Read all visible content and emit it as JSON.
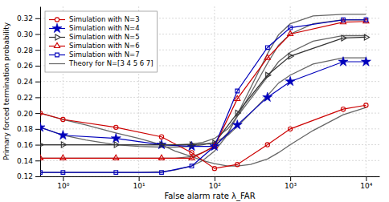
{
  "chart_data": {
    "type": "line",
    "xlabel": "False alarm rate λ_FAR",
    "ylabel": "Primary forced termination probability",
    "log": "x",
    "grid": true,
    "legend": "upper left",
    "xlim": [
      0.5,
      15000
    ],
    "xticks": [
      {
        "value": 1,
        "label": "10⁰"
      },
      {
        "value": 10,
        "label": "10¹"
      },
      {
        "value": 100,
        "label": "10²"
      },
      {
        "value": 1000,
        "label": "10³"
      },
      {
        "value": 10000,
        "label": "10⁴"
      }
    ],
    "ylim": [
      0.12,
      0.335
    ],
    "yticks": [
      0.12,
      0.14,
      0.16,
      0.18,
      {
        "value": 0.2,
        "label": "0.20"
      },
      0.22,
      0.24,
      0.26,
      0.28,
      {
        "value": 0.3,
        "label": "0.30"
      },
      0.32
    ],
    "series": [
      {
        "name": "Simulation with N=3",
        "color": "#cc0000",
        "marker": "circle",
        "x": [
          0.5,
          1,
          5,
          20,
          50,
          100,
          200,
          500,
          1000,
          5000,
          10000
        ],
        "values": [
          0.2,
          0.192,
          0.182,
          0.17,
          0.15,
          0.13,
          0.135,
          0.16,
          0.18,
          0.205,
          0.21
        ]
      },
      {
        "name": "Simulation with N=4",
        "color": "#0000bb",
        "marker": "star",
        "x": [
          0.5,
          1,
          5,
          20,
          50,
          100,
          200,
          500,
          1000,
          5000,
          10000
        ],
        "values": [
          0.182,
          0.172,
          0.168,
          0.16,
          0.158,
          0.158,
          0.185,
          0.22,
          0.24,
          0.265,
          0.265
        ]
      },
      {
        "name": "Simulation with N=5",
        "color": "#333333",
        "marker": "triangle-right",
        "x": [
          0.5,
          1,
          5,
          20,
          50,
          100,
          200,
          500,
          1000,
          5000,
          10000
        ],
        "values": [
          0.16,
          0.16,
          0.16,
          0.16,
          0.16,
          0.162,
          0.2,
          0.248,
          0.272,
          0.295,
          0.296
        ]
      },
      {
        "name": "Simulation with N=6",
        "color": "#cc0000",
        "marker": "triangle-up",
        "x": [
          0.5,
          1,
          5,
          20,
          50,
          100,
          200,
          500,
          1000,
          5000,
          10000
        ],
        "values": [
          0.143,
          0.143,
          0.143,
          0.143,
          0.143,
          0.158,
          0.218,
          0.27,
          0.3,
          0.315,
          0.316
        ]
      },
      {
        "name": "Simulation with N=7",
        "color": "#0000bb",
        "marker": "square",
        "x": [
          0.5,
          1,
          5,
          20,
          50,
          100,
          200,
          500,
          1000,
          5000,
          10000
        ],
        "values": [
          0.125,
          0.125,
          0.125,
          0.125,
          0.133,
          0.158,
          0.228,
          0.283,
          0.308,
          0.318,
          0.318
        ]
      },
      {
        "name": "Theory for N=[3 4 5 6 7]",
        "color": "#666666",
        "x": [
          0.5,
          1,
          2,
          5,
          10,
          20,
          30,
          50,
          70,
          100,
          150,
          200,
          300,
          500,
          700,
          1000,
          2000,
          5000,
          10000
        ],
        "values": [
          0.2,
          0.192,
          0.185,
          0.175,
          0.168,
          0.16,
          0.152,
          0.145,
          0.14,
          0.136,
          0.133,
          0.133,
          0.135,
          0.142,
          0.15,
          0.16,
          0.178,
          0.198,
          0.207
        ]
      },
      {
        "color": "#666666",
        "x": [
          0.5,
          1,
          2,
          5,
          10,
          20,
          30,
          50,
          70,
          100,
          150,
          200,
          300,
          500,
          700,
          1000,
          2000,
          5000,
          10000
        ],
        "values": [
          0.182,
          0.172,
          0.166,
          0.16,
          0.158,
          0.157,
          0.157,
          0.158,
          0.16,
          0.163,
          0.172,
          0.183,
          0.2,
          0.222,
          0.238,
          0.248,
          0.262,
          0.27,
          0.27
        ]
      },
      {
        "color": "#666666",
        "x": [
          0.5,
          1,
          2,
          5,
          10,
          20,
          30,
          50,
          70,
          100,
          150,
          200,
          300,
          500,
          700,
          1000,
          2000,
          5000,
          10000
        ],
        "values": [
          0.16,
          0.16,
          0.16,
          0.16,
          0.16,
          0.16,
          0.16,
          0.161,
          0.163,
          0.168,
          0.18,
          0.196,
          0.218,
          0.246,
          0.265,
          0.277,
          0.291,
          0.298,
          0.298
        ]
      },
      {
        "color": "#666666",
        "x": [
          0.5,
          1,
          2,
          5,
          10,
          20,
          30,
          50,
          70,
          100,
          150,
          200,
          300,
          500,
          700,
          1000,
          2000,
          5000,
          10000
        ],
        "values": [
          0.143,
          0.143,
          0.143,
          0.143,
          0.143,
          0.143,
          0.143,
          0.145,
          0.15,
          0.158,
          0.175,
          0.196,
          0.225,
          0.263,
          0.286,
          0.3,
          0.313,
          0.318,
          0.318
        ]
      },
      {
        "color": "#666666",
        "x": [
          0.5,
          1,
          2,
          5,
          10,
          20,
          30,
          50,
          70,
          100,
          150,
          200,
          300,
          500,
          700,
          1000,
          2000,
          5000,
          10000
        ],
        "values": [
          0.125,
          0.125,
          0.125,
          0.125,
          0.125,
          0.126,
          0.128,
          0.133,
          0.14,
          0.152,
          0.173,
          0.198,
          0.232,
          0.275,
          0.299,
          0.313,
          0.323,
          0.325,
          0.325
        ]
      }
    ]
  }
}
